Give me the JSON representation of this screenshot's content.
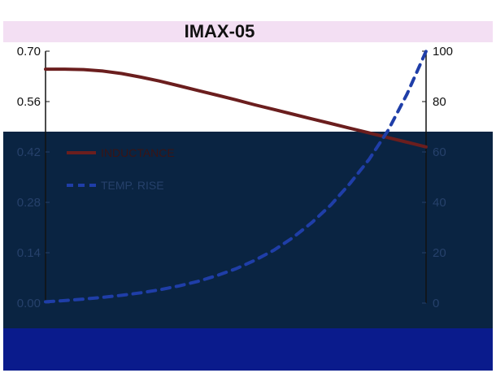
{
  "chart_data": {
    "type": "line",
    "title": "IMAX-05",
    "x": [
      0,
      1,
      2,
      3,
      4,
      5,
      6,
      7,
      8,
      9,
      10,
      11,
      12,
      13,
      14,
      15,
      16,
      17,
      18,
      19,
      20
    ],
    "xlim": [
      0,
      20
    ],
    "y_left": {
      "ylim": [
        0,
        0.7
      ],
      "ticks": [
        "0.00",
        "0.14",
        "0.28",
        "0.42",
        "0.56",
        "0.70"
      ]
    },
    "y_right": {
      "ylim": [
        0,
        100
      ],
      "ticks": [
        "0",
        "20",
        "40",
        "60",
        "80",
        "100"
      ]
    },
    "series": [
      {
        "name": "INDUCTANCE",
        "axis": "left",
        "color": "#6b1e1e",
        "style": "solid",
        "values": [
          0.65,
          0.65,
          0.649,
          0.645,
          0.638,
          0.628,
          0.617,
          0.604,
          0.591,
          0.578,
          0.565,
          0.551,
          0.538,
          0.525,
          0.512,
          0.499,
          0.486,
          0.473,
          0.46,
          0.447,
          0.434
        ]
      },
      {
        "name": "TEMP. RISE",
        "axis": "right",
        "color": "#1f3ea8",
        "style": "dashed",
        "values": [
          0.5,
          1.0,
          1.6,
          2.3,
          3.1,
          4.1,
          5.3,
          6.8,
          8.6,
          10.9,
          13.6,
          17.0,
          21.0,
          26.0,
          32.0,
          39.0,
          47.5,
          57.0,
          68.5,
          83.0,
          100.0
        ]
      }
    ],
    "grid": false,
    "legend_position": "left"
  },
  "colors": {
    "title_band": "#f3dff3",
    "dark_band": "#0a2442",
    "blue_band": "#0a1b8c",
    "axis_light": "#111111",
    "tick_light": "#111111",
    "tick_dark": "#26416b"
  }
}
